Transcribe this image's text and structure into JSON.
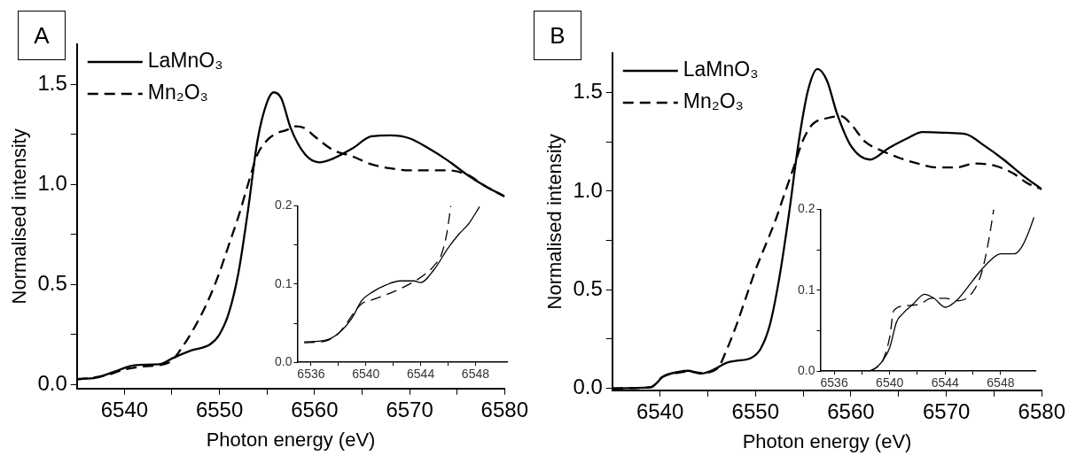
{
  "chart_data": [
    {
      "type": "line",
      "title": "A",
      "xlabel": "Photon energy (eV)",
      "ylabel": "Normalised intensity",
      "xlim": [
        6535,
        6580
      ],
      "ylim": [
        -0.02,
        1.7
      ],
      "xticks": [
        6540,
        {
          "value": 6545,
          "label": null
        },
        6550,
        {
          "value": 6555,
          "label": null
        },
        6560,
        {
          "value": 6565,
          "label": null
        },
        6570,
        {
          "value": 6575,
          "label": null
        },
        6580
      ],
      "yticks": [
        {
          "value": 0,
          "label": "0.0"
        },
        {
          "value": 0.25,
          "label": null
        },
        0.5,
        {
          "value": 0.75,
          "label": null
        },
        {
          "value": 1,
          "label": "1.0"
        },
        {
          "value": 1.25,
          "label": null
        },
        1.5
      ],
      "legend": "top left",
      "series": [
        {
          "name": "LaMnO₃",
          "color": "#000000",
          "line_style": "solid",
          "x": [
            6535,
            6537,
            6538,
            6539.5,
            6541,
            6543,
            6544,
            6545,
            6547,
            6549,
            6550,
            6551,
            6552,
            6553,
            6554,
            6555,
            6555.7,
            6556.5,
            6557.5,
            6559,
            6560.5,
            6562,
            6564,
            6566,
            6568,
            6570,
            6572,
            6574,
            6576,
            6578,
            6580
          ],
          "values": [
            0.028,
            0.034,
            0.048,
            0.074,
            0.096,
            0.1,
            0.105,
            0.13,
            0.17,
            0.2,
            0.25,
            0.36,
            0.56,
            0.87,
            1.22,
            1.41,
            1.46,
            1.43,
            1.28,
            1.15,
            1.11,
            1.13,
            1.18,
            1.24,
            1.245,
            1.23,
            1.18,
            1.12,
            1.05,
            0.99,
            0.94
          ]
        },
        {
          "name": "Mn₂O₃",
          "color": "#000000",
          "line_style": "dashed",
          "x": [
            6535,
            6538,
            6540,
            6542,
            6544,
            6545,
            6546.2,
            6547,
            6548,
            6549,
            6550,
            6551,
            6552,
            6553,
            6554,
            6555,
            6556,
            6557,
            6558,
            6559,
            6560,
            6562,
            6564,
            6566,
            6568,
            6570,
            6572,
            6574,
            6576,
            6578,
            6580
          ],
          "values": [
            0.025,
            0.045,
            0.075,
            0.09,
            0.1,
            0.12,
            0.195,
            0.255,
            0.34,
            0.44,
            0.56,
            0.7,
            0.84,
            1.0,
            1.15,
            1.22,
            1.255,
            1.27,
            1.29,
            1.28,
            1.24,
            1.17,
            1.14,
            1.1,
            1.08,
            1.07,
            1.07,
            1.07,
            1.05,
            0.99,
            0.94
          ]
        }
      ]
    },
    {
      "type": "line",
      "xlim": [
        6535,
        6550.3
      ],
      "ylim": [
        0,
        0.2
      ],
      "xticks": [
        6536,
        {
          "value": 6538,
          "label": null
        },
        6540,
        {
          "value": 6542,
          "label": null
        },
        6544,
        {
          "value": 6546,
          "label": null
        },
        6548
      ],
      "yticks": [
        {
          "value": 0,
          "label": "0.0"
        },
        {
          "value": 0.05,
          "label": null
        },
        0.1,
        {
          "value": 0.15,
          "label": null
        },
        0.2
      ],
      "series": [
        {
          "color": "#000000",
          "line_style": "solid",
          "x": [
            6535.5,
            6537,
            6538,
            6539,
            6539.7,
            6540.5,
            6541.5,
            6542.5,
            6543.5,
            6544,
            6545,
            6546,
            6546.8,
            6547.5,
            6548.3
          ],
          "values": [
            0.026,
            0.028,
            0.037,
            0.057,
            0.079,
            0.09,
            0.099,
            0.104,
            0.104,
            0.102,
            0.119,
            0.146,
            0.164,
            0.177,
            0.199
          ]
        },
        {
          "color": "#000000",
          "line_style": "dashed",
          "x": [
            6535.5,
            6537,
            6538,
            6539.7,
            6540.5,
            6542,
            6543.5,
            6544.5,
            6545,
            6545.5,
            6545.9,
            6546.2
          ],
          "values": [
            0.025,
            0.027,
            0.037,
            0.075,
            0.08,
            0.09,
            0.103,
            0.115,
            0.124,
            0.137,
            0.164,
            0.2
          ]
        }
      ]
    },
    {
      "type": "line",
      "title": "B",
      "xlabel": "Photon energy (eV)",
      "ylabel": "Normalised intensity",
      "xlim": [
        6535,
        6580
      ],
      "ylim": [
        -0.01,
        1.7
      ],
      "xticks": [
        6540,
        {
          "value": 6545,
          "label": null
        },
        6550,
        {
          "value": 6555,
          "label": null
        },
        6560,
        {
          "value": 6565,
          "label": null
        },
        6570,
        {
          "value": 6575,
          "label": null
        },
        6580
      ],
      "yticks": [
        {
          "value": 0,
          "label": "0.0"
        },
        {
          "value": 0.25,
          "label": null
        },
        0.5,
        {
          "value": 0.75,
          "label": null
        },
        {
          "value": 1,
          "label": "1.0"
        },
        {
          "value": 1.25,
          "label": null
        },
        1.5
      ],
      "legend": "top left",
      "series": [
        {
          "name": "LaMnO₃",
          "color": "#000000",
          "line_style": "solid",
          "x": [
            6535,
            6539,
            6539.5,
            6540.3,
            6542,
            6543,
            6544.3,
            6545.5,
            6547,
            6548,
            6549.5,
            6550.5,
            6551.5,
            6552.5,
            6553.5,
            6554.5,
            6555.5,
            6556.5,
            6557.5,
            6558.5,
            6560,
            6562,
            6564,
            6566,
            6567.5,
            6570,
            6572,
            6574,
            6576,
            6578,
            6580
          ],
          "values": [
            0,
            0.005,
            0.02,
            0.058,
            0.084,
            0.089,
            0.075,
            0.092,
            0.13,
            0.14,
            0.153,
            0.197,
            0.32,
            0.56,
            0.88,
            1.24,
            1.51,
            1.62,
            1.56,
            1.4,
            1.23,
            1.16,
            1.22,
            1.27,
            1.3,
            1.296,
            1.29,
            1.23,
            1.16,
            1.08,
            1.01
          ]
        },
        {
          "name": "Mn₂O₃",
          "color": "#000000",
          "line_style": "dashed",
          "x": [
            6535,
            6539,
            6540.3,
            6542,
            6543,
            6544.3,
            6546,
            6547,
            6548,
            6549,
            6550,
            6551,
            6552,
            6553,
            6554,
            6555,
            6556,
            6557.5,
            6559,
            6560,
            6561.5,
            6563,
            6565,
            6567,
            6569,
            6571,
            6573,
            6575,
            6577,
            6578.5,
            6580
          ],
          "values": [
            0,
            0.005,
            0.06,
            0.08,
            0.085,
            0.078,
            0.1,
            0.197,
            0.32,
            0.46,
            0.6,
            0.72,
            0.84,
            0.98,
            1.12,
            1.26,
            1.34,
            1.37,
            1.38,
            1.34,
            1.25,
            1.21,
            1.17,
            1.14,
            1.12,
            1.12,
            1.14,
            1.13,
            1.09,
            1.04,
            1.01
          ]
        }
      ]
    },
    {
      "type": "line",
      "xlim": [
        6535,
        6550.5
      ],
      "ylim": [
        0,
        0.2
      ],
      "xticks": [
        6536,
        {
          "value": 6538,
          "label": null
        },
        6540,
        {
          "value": 6542,
          "label": null
        },
        6544,
        {
          "value": 6546,
          "label": null
        },
        6548
      ],
      "yticks": [
        {
          "value": 0,
          "label": "0.0"
        },
        {
          "value": 0.05,
          "label": null
        },
        0.1,
        {
          "value": 0.15,
          "label": null
        },
        0.2
      ],
      "series": [
        {
          "color": "#000000",
          "line_style": "solid",
          "x": [
            6535,
            6538.5,
            6539,
            6539.5,
            6540,
            6540.5,
            6541,
            6541.7,
            6542.5,
            6543.2,
            6544,
            6544.8,
            6545.5,
            6546.5,
            6547.2,
            6548,
            6549,
            6549.5,
            6550,
            6550.4
          ],
          "values": [
            0,
            0,
            0.004,
            0.013,
            0.029,
            0.061,
            0.072,
            0.083,
            0.095,
            0.09,
            0.079,
            0.087,
            0.101,
            0.123,
            0.136,
            0.145,
            0.145,
            0.153,
            0.171,
            0.19
          ]
        },
        {
          "color": "#000000",
          "line_style": "dashed",
          "x": [
            6538.5,
            6539,
            6539.5,
            6540,
            6540.3,
            6541.2,
            6542.2,
            6543,
            6544,
            6545,
            6546,
            6546.6,
            6547,
            6547.3,
            6547.5
          ],
          "values": [
            0,
            0.004,
            0.013,
            0.042,
            0.075,
            0.081,
            0.083,
            0.09,
            0.09,
            0.087,
            0.098,
            0.12,
            0.149,
            0.178,
            0.2
          ]
        }
      ]
    }
  ]
}
